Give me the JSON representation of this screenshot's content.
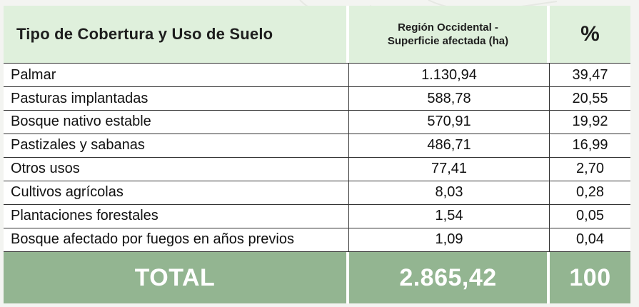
{
  "table": {
    "headers": {
      "type": "Tipo de Cobertura y Uso de Suelo",
      "surface_line1": "Región Occidental -",
      "surface_line2": "Superficie afectada (ha)",
      "percent": "%"
    },
    "rows": [
      {
        "name": "Palmar",
        "surface": "1.130,94",
        "percent": "39,47"
      },
      {
        "name": "Pasturas implantadas",
        "surface": "588,78",
        "percent": "20,55"
      },
      {
        "name": "Bosque nativo estable",
        "surface": "570,91",
        "percent": "19,92"
      },
      {
        "name": "Pastizales y sabanas",
        "surface": "486,71",
        "percent": "16,99"
      },
      {
        "name": "Otros usos",
        "surface": "77,41",
        "percent": "2,70"
      },
      {
        "name": "Cultivos agrícolas",
        "surface": "8,03",
        "percent": "0,28"
      },
      {
        "name": "Plantaciones forestales",
        "surface": "1,54",
        "percent": "0,05"
      },
      {
        "name": "Bosque afectado por fuegos en años previos",
        "surface": "1,09",
        "percent": "0,04"
      }
    ],
    "total": {
      "label": "TOTAL",
      "surface": "2.865,42",
      "percent": "100"
    }
  },
  "colors": {
    "header_bg": "#dff0dc",
    "total_bg": "#93b591",
    "page_bg": "#f3f4f1"
  }
}
